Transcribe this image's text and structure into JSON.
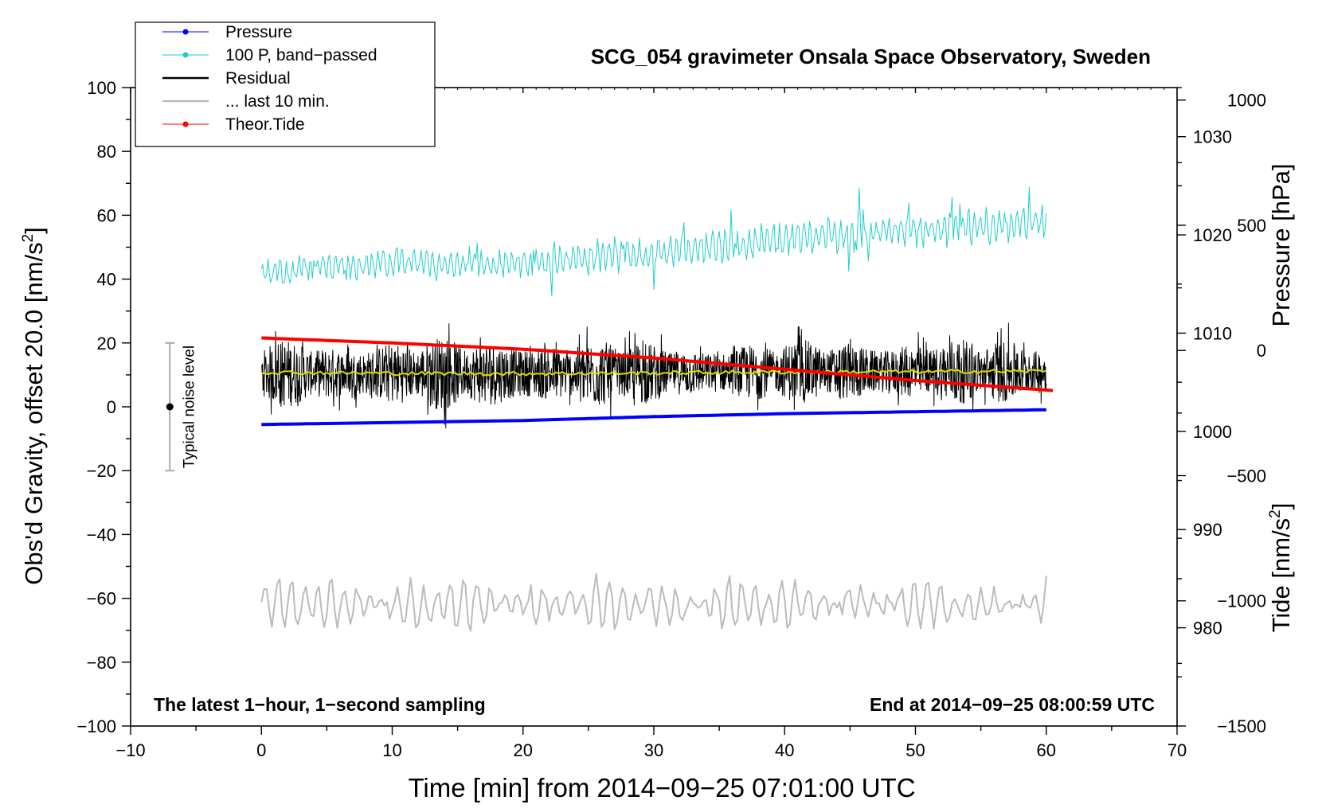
{
  "chart_data": {
    "type": "line",
    "title": "SCG_054 gravimeter Onsala Space Observatory, Sweden",
    "xlabel": "Time [min] from 2014−09−25 07:01:00 UTC",
    "ylabel_left": "Obs'd Gravity, offset 20.0 [nm/s",
    "ylabel_left_sup": "2",
    "ylabel_left_end": "]",
    "ylabel_right_pressure": "Pressure [hPa]",
    "ylabel_right_tide": "Tide [nm/s",
    "ylabel_right_tide_sup": "2",
    "ylabel_right_tide_end": "]",
    "xlim": [
      -10,
      70
    ],
    "ylim": [
      -100,
      100
    ],
    "pressure_lim": [
      970,
      1035
    ],
    "tide_lim": [
      -1500,
      1050
    ],
    "x_ticks": [
      -10,
      0,
      10,
      20,
      30,
      40,
      50,
      60,
      70
    ],
    "x_tick_labels": [
      "−10",
      "0",
      "10",
      "20",
      "30",
      "40",
      "50",
      "60",
      "70"
    ],
    "y_ticks": [
      -100,
      -80,
      -60,
      -40,
      -20,
      0,
      20,
      40,
      60,
      80,
      100
    ],
    "y_tick_labels": [
      "−100",
      "−80",
      "−60",
      "−40",
      "−20",
      "0",
      "20",
      "40",
      "60",
      "80",
      "100"
    ],
    "pressure_ticks": [
      980,
      990,
      1000,
      1010,
      1020,
      1030
    ],
    "pressure_tick_labels": [
      "980",
      "990",
      "1000",
      "1010",
      "1020",
      "1030"
    ],
    "tide_ticks": [
      -1500,
      -1000,
      -500,
      0,
      500,
      1000
    ],
    "tide_tick_labels": [
      "−1500",
      "−1000",
      "−500",
      "0",
      "500",
      "1000"
    ],
    "legend": {
      "position": "top-left",
      "entries": [
        {
          "label": "Pressure",
          "color": "#0000ff"
        },
        {
          "label": "100 P, band−passed",
          "color": "#22cccc"
        },
        {
          "label": "Residual",
          "color": "#000000"
        },
        {
          "label": "... last 10 min.",
          "color": "#bbbbbb"
        },
        {
          "label": "Theor.Tide",
          "color": "#ff0000"
        }
      ]
    },
    "annotations": {
      "bottom_left": "The latest 1−hour, 1−second sampling",
      "bottom_right": "End at 2014−09−25 08:00:59 UTC",
      "noise_label": "Typical noise level"
    },
    "noise_bar": {
      "x": -7,
      "center": 0,
      "low": -20,
      "high": 20
    },
    "series": [
      {
        "name": "Pressure",
        "axis": "pressure",
        "color": "#0000ff",
        "x": [
          0,
          10,
          20,
          30,
          40,
          50,
          60
        ],
        "values": [
          1000.7,
          1000.9,
          1001.1,
          1001.5,
          1001.8,
          1002.0,
          1002.2
        ]
      },
      {
        "name": "100 P, band−passed",
        "axis": "left",
        "color": "#22cccc",
        "x": [
          0,
          10,
          20,
          30,
          40,
          50,
          60
        ],
        "values": [
          42,
          45,
          45,
          48,
          53,
          55,
          58
        ],
        "amplitude": [
          4,
          4,
          4,
          5,
          5,
          5,
          5
        ]
      },
      {
        "name": "Residual",
        "axis": "left",
        "color": "#000000",
        "x": [
          0,
          10,
          20,
          30,
          40,
          50,
          60
        ],
        "values": [
          10.5,
          10.5,
          10.5,
          10.5,
          11,
          11,
          11
        ],
        "amplitude": [
          10,
          10,
          11,
          9,
          9,
          10,
          9
        ]
      },
      {
        "name": "Residual smoothed",
        "axis": "left",
        "color": "#dddd00",
        "x": [
          0,
          10,
          20,
          30,
          40,
          50,
          60
        ],
        "values": [
          10.8,
          10.5,
          10.4,
          10.6,
          10.9,
          11.0,
          11.2
        ]
      },
      {
        "name": "... last 10 min.",
        "axis": "left",
        "color": "#bbbbbb",
        "x": [
          0,
          10,
          20,
          30,
          40,
          50,
          60
        ],
        "values": [
          -62,
          -62,
          -62,
          -62,
          -62,
          -62,
          -62
        ],
        "amplitude": [
          9,
          8,
          8,
          9,
          8,
          6,
          8
        ]
      },
      {
        "name": "Theor.Tide",
        "axis": "tide",
        "color": "#ff0000",
        "x": [
          0,
          10,
          20,
          30,
          40,
          50,
          60.5
        ],
        "values": [
          50,
          30,
          5,
          -30,
          -75,
          -120,
          -160
        ]
      }
    ]
  }
}
